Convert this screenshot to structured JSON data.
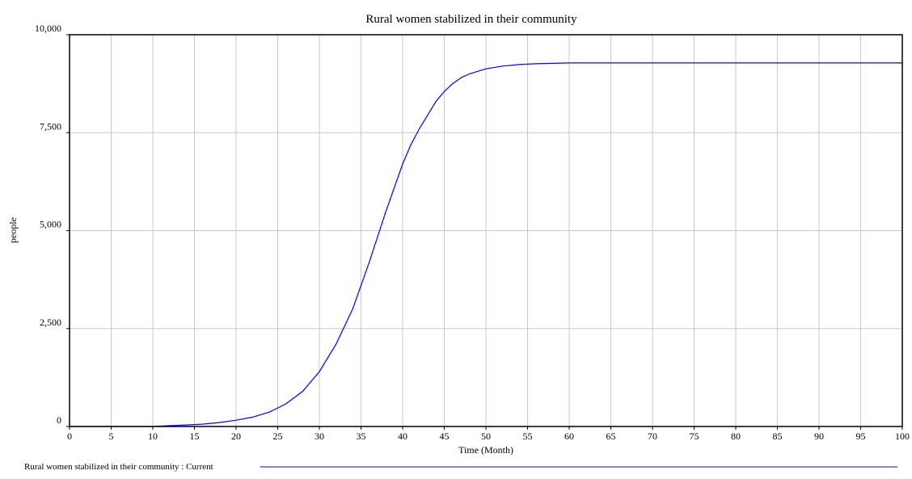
{
  "chart_data": {
    "type": "line",
    "title": "Rural women stabilized in their community",
    "xlabel": "Time (Month)",
    "ylabel": "people",
    "xlim": [
      0,
      100
    ],
    "ylim": [
      0,
      10000
    ],
    "x_ticks": [
      0,
      5,
      10,
      15,
      20,
      25,
      30,
      35,
      40,
      45,
      50,
      55,
      60,
      65,
      70,
      75,
      80,
      85,
      90,
      95,
      100
    ],
    "x_tick_labels": [
      "0",
      "5",
      "10",
      "15",
      "20",
      "25",
      "30",
      "35",
      "40",
      "45",
      "50",
      "55",
      "60",
      "65",
      "70",
      "75",
      "80",
      "85",
      "90",
      "95",
      "100"
    ],
    "y_ticks": [
      0,
      2500,
      5000,
      7500,
      10000
    ],
    "y_tick_labels": [
      "0",
      "2,500",
      "5,000",
      "7,500",
      "10,000"
    ],
    "grid": true,
    "legend_position": "bottom",
    "series": [
      {
        "name": "Rural women stabilized in their community : Current",
        "color": "#0000ff",
        "x": [
          0,
          5,
          10,
          12,
          14,
          16,
          18,
          20,
          22,
          24,
          26,
          28,
          30,
          32,
          34,
          36,
          38,
          40,
          41,
          42,
          43,
          44,
          45,
          46,
          47,
          48,
          50,
          52,
          54,
          56,
          58,
          60,
          65,
          70,
          75,
          80,
          85,
          90,
          95,
          100
        ],
        "y": [
          0,
          0,
          0,
          20,
          40,
          60,
          100,
          160,
          240,
          370,
          580,
          900,
          1400,
          2100,
          3000,
          4200,
          5500,
          6700,
          7200,
          7600,
          7950,
          8300,
          8550,
          8750,
          8900,
          9000,
          9130,
          9200,
          9240,
          9260,
          9270,
          9280,
          9280,
          9280,
          9280,
          9280,
          9280,
          9280,
          9280,
          9280
        ]
      }
    ]
  }
}
